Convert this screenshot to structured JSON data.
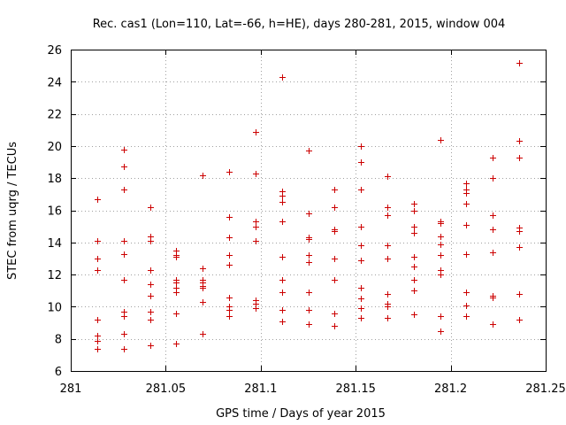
{
  "chart_data": {
    "type": "scatter",
    "title": "Rec. cas1 (Lon=110, Lat=-66, h=HE), days 280-281, 2015, window 004",
    "xlabel": "GPS time / Days of year 2015",
    "ylabel": "STEC from uqrg / TECUs",
    "xlim": [
      281,
      281.25
    ],
    "ylim": [
      6,
      26
    ],
    "xticks": [
      281,
      281.05,
      281.1,
      281.15,
      281.2,
      281.25
    ],
    "xtick_labels": [
      "281",
      "281.05",
      "281.1",
      "281.15",
      "281.2",
      "281.25"
    ],
    "yticks": [
      6,
      8,
      10,
      12,
      14,
      16,
      18,
      20,
      22,
      24,
      26
    ],
    "ytick_labels": [
      "6",
      "8",
      "10",
      "12",
      "14",
      "16",
      "18",
      "20",
      "22",
      "24",
      "26"
    ],
    "grid": true,
    "marker_color": "#cc0000",
    "marker": "plus",
    "series": [
      {
        "points": [
          [
            281.0139,
            16.7
          ],
          [
            281.0139,
            14.1
          ],
          [
            281.0139,
            13.0
          ],
          [
            281.0139,
            12.3
          ],
          [
            281.0139,
            9.2
          ],
          [
            281.0139,
            8.2
          ],
          [
            281.0139,
            7.9
          ],
          [
            281.0139,
            7.4
          ],
          [
            281.0278,
            19.8
          ],
          [
            281.0278,
            18.7
          ],
          [
            281.0278,
            17.3
          ],
          [
            281.0278,
            14.1
          ],
          [
            281.0278,
            13.3
          ],
          [
            281.0278,
            11.7
          ],
          [
            281.0278,
            9.7
          ],
          [
            281.0278,
            9.4
          ],
          [
            281.0278,
            8.3
          ],
          [
            281.0278,
            7.4
          ],
          [
            281.0417,
            16.2
          ],
          [
            281.0417,
            14.4
          ],
          [
            281.0417,
            14.1
          ],
          [
            281.0417,
            12.3
          ],
          [
            281.0417,
            11.4
          ],
          [
            281.0417,
            10.7
          ],
          [
            281.0417,
            9.7
          ],
          [
            281.0417,
            9.2
          ],
          [
            281.0417,
            7.6
          ],
          [
            281.0556,
            13.5
          ],
          [
            281.0556,
            13.2
          ],
          [
            281.0556,
            13.1
          ],
          [
            281.0556,
            11.7
          ],
          [
            281.0556,
            11.5
          ],
          [
            281.0556,
            11.2
          ],
          [
            281.0556,
            10.9
          ],
          [
            281.0556,
            9.6
          ],
          [
            281.0556,
            7.7
          ],
          [
            281.0694,
            18.2
          ],
          [
            281.0694,
            12.4
          ],
          [
            281.0694,
            11.7
          ],
          [
            281.0694,
            11.5
          ],
          [
            281.0694,
            11.3
          ],
          [
            281.0694,
            11.2
          ],
          [
            281.0694,
            10.3
          ],
          [
            281.0694,
            8.3
          ],
          [
            281.0833,
            18.4
          ],
          [
            281.0833,
            15.6
          ],
          [
            281.0833,
            14.3
          ],
          [
            281.0833,
            13.2
          ],
          [
            281.0833,
            12.6
          ],
          [
            281.0833,
            10.6
          ],
          [
            281.0833,
            10.0
          ],
          [
            281.0833,
            9.8
          ],
          [
            281.0833,
            9.4
          ],
          [
            281.0972,
            20.9
          ],
          [
            281.0972,
            18.3
          ],
          [
            281.0972,
            15.3
          ],
          [
            281.0972,
            15.0
          ],
          [
            281.0972,
            14.1
          ],
          [
            281.0972,
            10.4
          ],
          [
            281.0972,
            10.2
          ],
          [
            281.0972,
            9.9
          ],
          [
            281.1111,
            24.3
          ],
          [
            281.1111,
            17.2
          ],
          [
            281.1111,
            16.9
          ],
          [
            281.1111,
            16.5
          ],
          [
            281.1111,
            15.3
          ],
          [
            281.1111,
            13.1
          ],
          [
            281.1111,
            11.7
          ],
          [
            281.1111,
            10.9
          ],
          [
            281.1111,
            9.8
          ],
          [
            281.1111,
            9.1
          ],
          [
            281.125,
            19.7
          ],
          [
            281.125,
            15.8
          ],
          [
            281.125,
            14.3
          ],
          [
            281.125,
            14.2
          ],
          [
            281.125,
            13.2
          ],
          [
            281.125,
            12.8
          ],
          [
            281.125,
            10.9
          ],
          [
            281.125,
            9.8
          ],
          [
            281.125,
            8.9
          ],
          [
            281.1389,
            17.3
          ],
          [
            281.1389,
            16.2
          ],
          [
            281.1389,
            14.8
          ],
          [
            281.1389,
            14.7
          ],
          [
            281.1389,
            13.0
          ],
          [
            281.1389,
            11.7
          ],
          [
            281.1389,
            9.6
          ],
          [
            281.1389,
            8.8
          ],
          [
            281.1528,
            20.0
          ],
          [
            281.1528,
            19.0
          ],
          [
            281.1528,
            17.3
          ],
          [
            281.1528,
            15.0
          ],
          [
            281.1528,
            13.8
          ],
          [
            281.1528,
            12.9
          ],
          [
            281.1528,
            11.2
          ],
          [
            281.1528,
            10.5
          ],
          [
            281.1528,
            9.9
          ],
          [
            281.1528,
            9.3
          ],
          [
            281.1667,
            18.1
          ],
          [
            281.1667,
            16.2
          ],
          [
            281.1667,
            15.7
          ],
          [
            281.1667,
            13.8
          ],
          [
            281.1667,
            13.0
          ],
          [
            281.1667,
            10.8
          ],
          [
            281.1667,
            10.2
          ],
          [
            281.1667,
            10.0
          ],
          [
            281.1667,
            9.3
          ],
          [
            281.1806,
            16.4
          ],
          [
            281.1806,
            16.0
          ],
          [
            281.1806,
            15.0
          ],
          [
            281.1806,
            14.6
          ],
          [
            281.1806,
            13.1
          ],
          [
            281.1806,
            12.5
          ],
          [
            281.1806,
            11.7
          ],
          [
            281.1806,
            11.0
          ],
          [
            281.1806,
            9.5
          ],
          [
            281.1944,
            20.4
          ],
          [
            281.1944,
            15.3
          ],
          [
            281.1944,
            15.2
          ],
          [
            281.1944,
            14.4
          ],
          [
            281.1944,
            13.9
          ],
          [
            281.1944,
            13.2
          ],
          [
            281.1944,
            12.3
          ],
          [
            281.1944,
            12.0
          ],
          [
            281.1944,
            9.4
          ],
          [
            281.1944,
            8.5
          ],
          [
            281.2083,
            17.7
          ],
          [
            281.2083,
            17.3
          ],
          [
            281.2083,
            17.1
          ],
          [
            281.2083,
            16.4
          ],
          [
            281.2083,
            15.1
          ],
          [
            281.2083,
            13.3
          ],
          [
            281.2083,
            10.9
          ],
          [
            281.2083,
            10.1
          ],
          [
            281.2083,
            9.4
          ],
          [
            281.2222,
            19.3
          ],
          [
            281.2222,
            18.0
          ],
          [
            281.2222,
            15.7
          ],
          [
            281.2222,
            14.8
          ],
          [
            281.2222,
            13.4
          ],
          [
            281.2222,
            10.7
          ],
          [
            281.2222,
            10.6
          ],
          [
            281.2222,
            8.9
          ],
          [
            281.2361,
            25.2
          ],
          [
            281.2361,
            20.3
          ],
          [
            281.2361,
            19.3
          ],
          [
            281.2361,
            14.9
          ],
          [
            281.2361,
            14.7
          ],
          [
            281.2361,
            13.7
          ],
          [
            281.2361,
            10.8
          ],
          [
            281.2361,
            9.2
          ]
        ]
      }
    ]
  }
}
